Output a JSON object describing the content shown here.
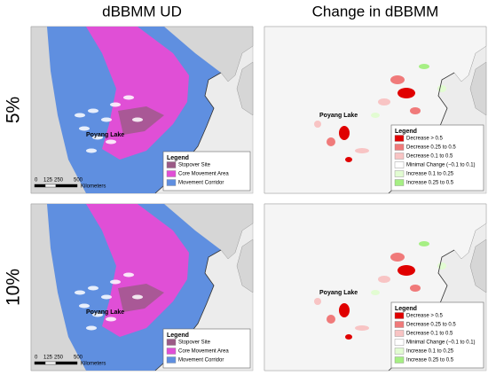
{
  "columns": [
    "dBBMM UD",
    "Change in dBBMM"
  ],
  "rows": [
    "5%",
    "10%"
  ],
  "panels": [
    {
      "lake_label": "Poyang Lake",
      "legend": {
        "title": "Legend",
        "items": [
          {
            "label": "Stopover Site",
            "color": "#9b5a86"
          },
          {
            "label": "Core Movement Area",
            "color": "#e04fd6"
          },
          {
            "label": "Movement Corridor",
            "color": "#5f8fe0"
          }
        ]
      },
      "scale": [
        "0",
        "125",
        "250",
        "500",
        "Kilometers"
      ]
    },
    {
      "lake_label": "Poyang Lake",
      "legend": {
        "title": "Legend",
        "items": [
          {
            "label": "Decrease > 0.5",
            "color": "#e00000"
          },
          {
            "label": "Decrease 0.25 to 0.5",
            "color": "#f07a7a"
          },
          {
            "label": "Decrease 0.1 to 0.5",
            "color": "#f8c4c4"
          },
          {
            "label": "Minimal Change (−0.1 to 0.1)",
            "color": "#ffffff"
          },
          {
            "label": "Increase 0.1 to 0.25",
            "color": "#e2fcd2"
          },
          {
            "label": "Increase 0.25 to 0.5",
            "color": "#a6ef84"
          }
        ]
      }
    },
    {
      "lake_label": "Poyang Lake",
      "legend": {
        "title": "Legend",
        "items": [
          {
            "label": "Stopover Site",
            "color": "#9b5a86"
          },
          {
            "label": "Core Movement Area",
            "color": "#e04fd6"
          },
          {
            "label": "Movement Corridor",
            "color": "#5f8fe0"
          }
        ]
      },
      "scale": [
        "0",
        "125",
        "250",
        "500",
        "Kilometers"
      ]
    },
    {
      "lake_label": "Poyang Lake",
      "legend": {
        "title": "Legend",
        "items": [
          {
            "label": "Decrease > 0.5",
            "color": "#e00000"
          },
          {
            "label": "Decrease 0.25 to 0.5",
            "color": "#f07a7a"
          },
          {
            "label": "Decrease 0.1 to 0.5",
            "color": "#f8c4c4"
          },
          {
            "label": "Minimal Change (−0.1 to 0.1)",
            "color": "#ffffff"
          },
          {
            "label": "Increase 0.1 to 0.25",
            "color": "#e2fcd2"
          },
          {
            "label": "Increase 0.25 to 0.5",
            "color": "#a6ef84"
          }
        ]
      }
    }
  ]
}
